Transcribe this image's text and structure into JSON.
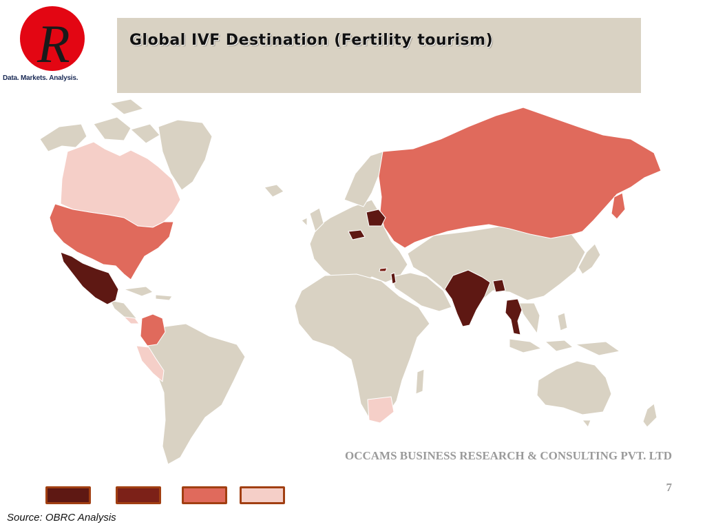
{
  "slide": {
    "title": "Global IVF Destination (Fertility tourism)",
    "company": "OCCAMS BUSINESS RESEARCH & CONSULTING PVT. LTD",
    "page_number": "7",
    "source": "Source: OBRC Analysis"
  },
  "logo": {
    "letter": "R",
    "tagline": "Data. Markets. Analysis.",
    "circle_color": "#e30613"
  },
  "map": {
    "base_color": "#d9d2c3",
    "tiers": [
      {
        "color": "#5e1813",
        "countries": [
          "Mexico",
          "Poland",
          "Czech Republic",
          "India",
          "Thailand",
          "Israel"
        ]
      },
      {
        "color": "#7c2118",
        "countries": [
          "Cyprus"
        ]
      },
      {
        "color": "#e06a5c",
        "countries": [
          "United States",
          "Russia",
          "Colombia"
        ]
      },
      {
        "color": "#f5cfc8",
        "countries": [
          "Canada",
          "Peru",
          "Panama",
          "South Africa"
        ]
      }
    ]
  },
  "legend": {
    "swatches": [
      "#5e1813",
      "#7c2118",
      "#e06a5c",
      "#f5cfc8"
    ],
    "border_color": "#a13f12"
  }
}
